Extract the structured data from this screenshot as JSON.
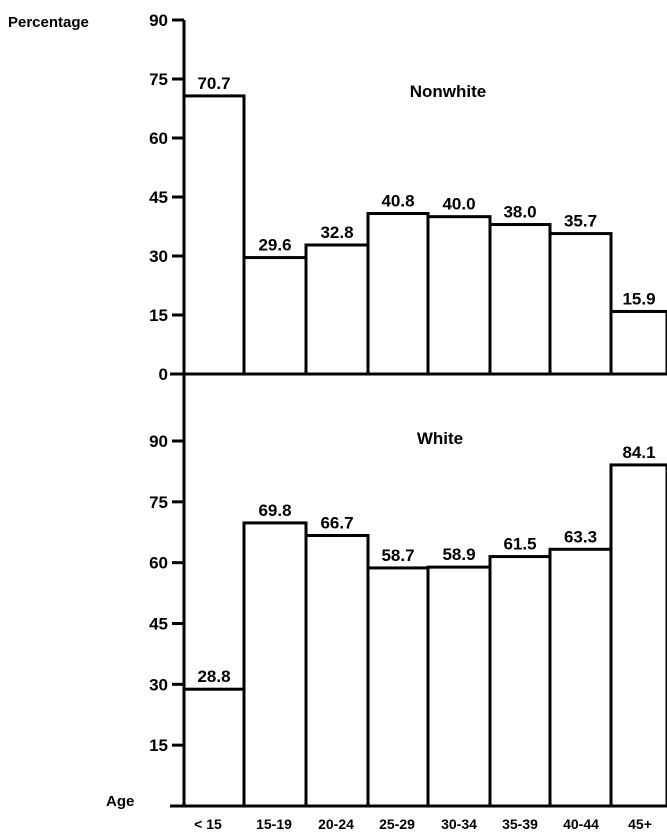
{
  "chart_data": {
    "type": "bar",
    "ylabel": "Percentage",
    "xlabel": "Age",
    "categories": [
      "< 15",
      "15-19",
      "20-24",
      "25-29",
      "30-34",
      "35-39",
      "40-44",
      "45+"
    ],
    "ylim": [
      0,
      90
    ],
    "yticks": [
      0,
      15,
      30,
      45,
      60,
      75,
      90
    ],
    "panels": [
      {
        "title": "Nonwhite",
        "values": [
          70.7,
          29.6,
          32.8,
          40.8,
          40.0,
          38.0,
          35.7,
          15.9
        ],
        "labels": [
          "70.7",
          "29.6",
          "32.8",
          "40.8",
          "40.0",
          "38.0",
          "35.7",
          "15.9"
        ]
      },
      {
        "title": "White",
        "values": [
          28.8,
          69.8,
          66.7,
          58.7,
          58.9,
          61.5,
          63.3,
          84.1
        ],
        "labels": [
          "28.8",
          "69.8",
          "66.7",
          "58.7",
          "58.9",
          "61.5",
          "63.3",
          "84.1"
        ]
      }
    ],
    "colors": {
      "bar_fill": "#ffffff",
      "stroke": "#000000"
    }
  }
}
